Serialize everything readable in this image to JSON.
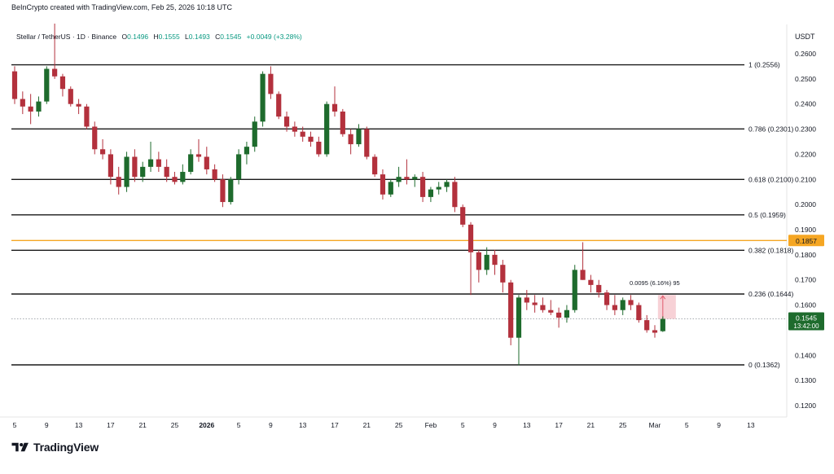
{
  "header": {
    "credit": "BeInCrypto created with TradingView.com, Feb 25, 2026 10:18 UTC",
    "symbol": "Stellar / TetherUS · 1D · Binance",
    "ohlc": {
      "o_label": "O",
      "o_value": "0.1496",
      "h_label": "H",
      "h_value": "0.1555",
      "l_label": "L",
      "l_value": "0.1493",
      "c_label": "C",
      "c_value": "0.1545",
      "change": "+0.0049 (+3.28%)"
    },
    "currency": "USDT"
  },
  "logo": {
    "text": "TradingView"
  },
  "colors": {
    "up": "#1e6b2d",
    "down": "#b3313d",
    "fib_line": "#1a1a1a",
    "orange_line": "#f5a623",
    "current_price_bg": "#1e6b2d",
    "measure_fill": "#f6c9cf",
    "measure_stroke": "#e05a6b"
  },
  "chart_data": {
    "type": "candlestick",
    "title": "Stellar / TetherUS · 1D · Binance",
    "y_axis": {
      "ylim": [
        0.113,
        0.273
      ],
      "ticks": [
        "0.2600",
        "0.2500",
        "0.2400",
        "0.2300",
        "0.2200",
        "0.2100",
        "0.2000",
        "0.1900",
        "0.1800",
        "0.1700",
        "0.1600",
        "0.1400",
        "0.1300",
        "0.1200"
      ],
      "side": "right"
    },
    "x_axis": {
      "ticks": [
        "5",
        "9",
        "13",
        "17",
        "21",
        "25",
        "2026",
        "5",
        "9",
        "13",
        "17",
        "21",
        "25",
        "Feb",
        "5",
        "9",
        "13",
        "17",
        "21",
        "25",
        "Mar",
        "5",
        "9",
        "13"
      ]
    },
    "fib_levels": [
      {
        "label": "1 (0.2556)",
        "value": 0.2556
      },
      {
        "label": "0.786 (0.2301)",
        "value": 0.2301
      },
      {
        "label": "0.618 (0.2100)",
        "value": 0.21
      },
      {
        "label": "0.5 (0.1959)",
        "value": 0.1959
      },
      {
        "label": "0.382 (0.1818)",
        "value": 0.1818
      },
      {
        "label": "0.236 (0.1644)",
        "value": 0.1644
      },
      {
        "label": "0 (0.1362)",
        "value": 0.1362
      }
    ],
    "horizontal_line": {
      "value": 0.1857,
      "label": "0.1857"
    },
    "current_price": {
      "value": 0.1545,
      "label": "0.1545",
      "countdown": "13:42:00"
    },
    "measure": {
      "from": 0.1545,
      "to": 0.164,
      "label": "0.0095 (6.16%) 95"
    },
    "candles": [
      [
        0.253,
        0.255,
        0.24,
        0.242
      ],
      [
        0.242,
        0.245,
        0.236,
        0.239
      ],
      [
        0.239,
        0.244,
        0.232,
        0.237
      ],
      [
        0.237,
        0.243,
        0.235,
        0.241
      ],
      [
        0.241,
        0.255,
        0.24,
        0.254
      ],
      [
        0.254,
        0.272,
        0.25,
        0.251
      ],
      [
        0.251,
        0.252,
        0.243,
        0.246
      ],
      [
        0.246,
        0.247,
        0.239,
        0.24
      ],
      [
        0.24,
        0.242,
        0.236,
        0.239
      ],
      [
        0.239,
        0.24,
        0.23,
        0.231
      ],
      [
        0.231,
        0.233,
        0.22,
        0.222
      ],
      [
        0.222,
        0.226,
        0.218,
        0.22
      ],
      [
        0.22,
        0.222,
        0.208,
        0.211
      ],
      [
        0.211,
        0.215,
        0.204,
        0.207
      ],
      [
        0.207,
        0.221,
        0.205,
        0.219
      ],
      [
        0.219,
        0.222,
        0.209,
        0.211
      ],
      [
        0.211,
        0.217,
        0.209,
        0.215
      ],
      [
        0.215,
        0.225,
        0.213,
        0.218
      ],
      [
        0.218,
        0.221,
        0.213,
        0.215
      ],
      [
        0.215,
        0.218,
        0.209,
        0.211
      ],
      [
        0.211,
        0.213,
        0.208,
        0.209
      ],
      [
        0.209,
        0.216,
        0.208,
        0.213
      ],
      [
        0.213,
        0.222,
        0.212,
        0.22
      ],
      [
        0.22,
        0.226,
        0.217,
        0.219
      ],
      [
        0.219,
        0.223,
        0.212,
        0.214
      ],
      [
        0.214,
        0.216,
        0.209,
        0.21
      ],
      [
        0.21,
        0.212,
        0.199,
        0.201
      ],
      [
        0.201,
        0.211,
        0.2,
        0.21
      ],
      [
        0.21,
        0.222,
        0.208,
        0.22
      ],
      [
        0.22,
        0.225,
        0.216,
        0.223
      ],
      [
        0.223,
        0.235,
        0.221,
        0.233
      ],
      [
        0.233,
        0.253,
        0.231,
        0.252
      ],
      [
        0.252,
        0.255,
        0.242,
        0.244
      ],
      [
        0.244,
        0.245,
        0.234,
        0.235
      ],
      [
        0.235,
        0.237,
        0.229,
        0.231
      ],
      [
        0.231,
        0.233,
        0.227,
        0.229
      ],
      [
        0.229,
        0.231,
        0.225,
        0.227
      ],
      [
        0.227,
        0.229,
        0.223,
        0.225
      ],
      [
        0.225,
        0.227,
        0.219,
        0.22
      ],
      [
        0.22,
        0.241,
        0.219,
        0.24
      ],
      [
        0.24,
        0.247,
        0.235,
        0.237
      ],
      [
        0.237,
        0.238,
        0.227,
        0.228
      ],
      [
        0.228,
        0.23,
        0.22,
        0.224
      ],
      [
        0.224,
        0.232,
        0.223,
        0.23
      ],
      [
        0.23,
        0.231,
        0.218,
        0.219
      ],
      [
        0.219,
        0.22,
        0.211,
        0.212
      ],
      [
        0.212,
        0.214,
        0.202,
        0.204
      ],
      [
        0.204,
        0.21,
        0.203,
        0.209
      ],
      [
        0.209,
        0.215,
        0.207,
        0.211
      ],
      [
        0.211,
        0.218,
        0.208,
        0.21
      ],
      [
        0.21,
        0.212,
        0.207,
        0.211
      ],
      [
        0.211,
        0.213,
        0.201,
        0.203
      ],
      [
        0.203,
        0.207,
        0.201,
        0.206
      ],
      [
        0.206,
        0.209,
        0.204,
        0.207
      ],
      [
        0.207,
        0.21,
        0.205,
        0.209
      ],
      [
        0.209,
        0.211,
        0.197,
        0.199
      ],
      [
        0.199,
        0.2,
        0.191,
        0.192
      ],
      [
        0.192,
        0.193,
        0.164,
        0.181
      ],
      [
        0.181,
        0.182,
        0.169,
        0.174
      ],
      [
        0.174,
        0.183,
        0.172,
        0.18
      ],
      [
        0.18,
        0.182,
        0.172,
        0.176
      ],
      [
        0.176,
        0.178,
        0.165,
        0.169
      ],
      [
        0.169,
        0.17,
        0.144,
        0.147
      ],
      [
        0.147,
        0.164,
        0.136,
        0.163
      ],
      [
        0.163,
        0.166,
        0.158,
        0.161
      ],
      [
        0.161,
        0.164,
        0.157,
        0.16
      ],
      [
        0.16,
        0.163,
        0.157,
        0.158
      ],
      [
        0.158,
        0.162,
        0.156,
        0.157
      ],
      [
        0.157,
        0.159,
        0.151,
        0.155
      ],
      [
        0.155,
        0.16,
        0.153,
        0.158
      ],
      [
        0.158,
        0.176,
        0.157,
        0.174
      ],
      [
        0.174,
        0.185,
        0.17,
        0.17
      ],
      [
        0.17,
        0.172,
        0.165,
        0.168
      ],
      [
        0.168,
        0.17,
        0.163,
        0.165
      ],
      [
        0.165,
        0.166,
        0.158,
        0.16
      ],
      [
        0.16,
        0.164,
        0.156,
        0.158
      ],
      [
        0.158,
        0.163,
        0.156,
        0.162
      ],
      [
        0.162,
        0.164,
        0.158,
        0.16
      ],
      [
        0.16,
        0.161,
        0.153,
        0.154
      ],
      [
        0.154,
        0.156,
        0.149,
        0.15
      ],
      [
        0.15,
        0.152,
        0.147,
        0.149
      ],
      [
        0.1496,
        0.1555,
        0.1493,
        0.1545
      ]
    ]
  }
}
